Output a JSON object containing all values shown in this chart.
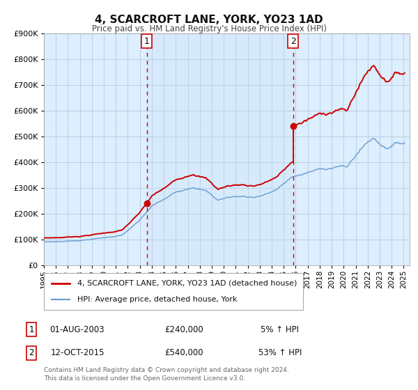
{
  "title": "4, SCARCROFT LANE, YORK, YO23 1AD",
  "subtitle": "Price paid vs. HM Land Registry's House Price Index (HPI)",
  "background_color": "#ffffff",
  "plot_bg_color": "#ddeeff",
  "grid_color": "#ccddee",
  "ylim": [
    0,
    900000
  ],
  "yticks": [
    0,
    100000,
    200000,
    300000,
    400000,
    500000,
    600000,
    700000,
    800000,
    900000
  ],
  "ytick_labels": [
    "£0",
    "£100K",
    "£200K",
    "£300K",
    "£400K",
    "£500K",
    "£600K",
    "£700K",
    "£800K",
    "£900K"
  ],
  "hpi_color": "#6699cc",
  "price_color": "#cc0000",
  "vline_color": "#cc0000",
  "sale1_date_x": 2003.58,
  "sale1_price": 240000,
  "sale1_label": "1",
  "sale1_date_str": "01-AUG-2003",
  "sale1_price_str": "£240,000",
  "sale1_pct": "5% ↑ HPI",
  "sale2_date_x": 2015.78,
  "sale2_price": 540000,
  "sale2_label": "2",
  "sale2_date_str": "12-OCT-2015",
  "sale2_price_str": "£540,000",
  "sale2_pct": "53% ↑ HPI",
  "legend_line1": "4, SCARCROFT LANE, YORK, YO23 1AD (detached house)",
  "legend_line2": "HPI: Average price, detached house, York",
  "footer1": "Contains HM Land Registry data © Crown copyright and database right 2024.",
  "footer2": "This data is licensed under the Open Government Licence v3.0.",
  "xmin": 1995,
  "xmax": 2025.5,
  "xtick_years": [
    1995,
    1996,
    1997,
    1998,
    1999,
    2000,
    2001,
    2002,
    2003,
    2004,
    2005,
    2006,
    2007,
    2008,
    2009,
    2010,
    2011,
    2012,
    2013,
    2014,
    2015,
    2016,
    2017,
    2018,
    2019,
    2020,
    2021,
    2022,
    2023,
    2024,
    2025
  ],
  "hpi_anchors_x": [
    1995.0,
    1996.5,
    1998.0,
    2000.0,
    2001.5,
    2003.0,
    2004.0,
    2005.0,
    2006.0,
    2007.5,
    2008.5,
    2009.5,
    2010.5,
    2011.5,
    2012.5,
    2013.5,
    2014.5,
    2015.78,
    2016.5,
    2017.5,
    2018.5,
    2019.5,
    2020.3,
    2021.0,
    2021.5,
    2022.0,
    2022.5,
    2023.0,
    2023.5,
    2024.0,
    2024.5,
    2025.0
  ],
  "hpi_anchors_y": [
    90000,
    92000,
    97000,
    108000,
    118000,
    175000,
    228000,
    252000,
    278000,
    310000,
    295000,
    258000,
    270000,
    274000,
    272000,
    285000,
    305000,
    355000,
    362000,
    375000,
    385000,
    398000,
    392000,
    440000,
    468000,
    495000,
    510000,
    492000,
    478000,
    488000,
    498000,
    500000
  ]
}
